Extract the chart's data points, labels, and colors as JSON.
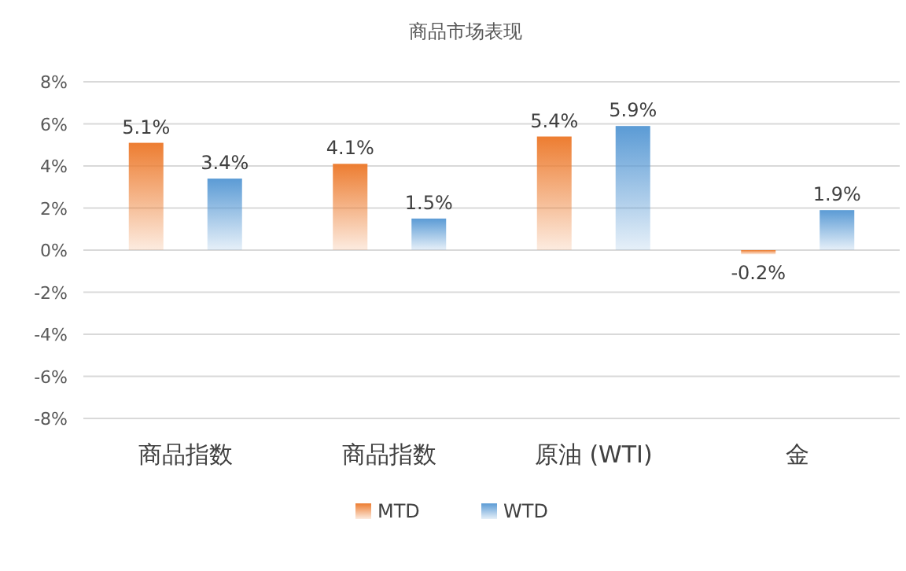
{
  "chart_data": {
    "type": "bar",
    "title": "商品市场表现",
    "categories": [
      "商品指数",
      "商品指数",
      "原油 (WTI)",
      "金"
    ],
    "series": [
      {
        "name": "MTD",
        "color": "#ed7d31",
        "values": [
          5.1,
          4.1,
          5.4,
          -0.2
        ],
        "value_labels": [
          "5.1%",
          "4.1%",
          "5.4%",
          "-0.2%"
        ]
      },
      {
        "name": "WTD",
        "color": "#5b9bd5",
        "values": [
          3.4,
          1.5,
          5.9,
          1.9
        ],
        "value_labels": [
          "3.4%",
          "1.5%",
          "5.9%",
          "1.9%"
        ]
      }
    ],
    "ylim": [
      -8,
      8
    ],
    "yticks": [
      {
        "value": -8,
        "label": "-8%"
      },
      {
        "value": -6,
        "label": "-6%"
      },
      {
        "value": -4,
        "label": "-4%"
      },
      {
        "value": -2,
        "label": "-2%"
      },
      {
        "value": 0,
        "label": "0%"
      },
      {
        "value": 2,
        "label": "2%"
      },
      {
        "value": 4,
        "label": "4%"
      },
      {
        "value": 6,
        "label": "6%"
      },
      {
        "value": 8,
        "label": "8%"
      }
    ],
    "grid": "y",
    "legend": "bottom"
  }
}
